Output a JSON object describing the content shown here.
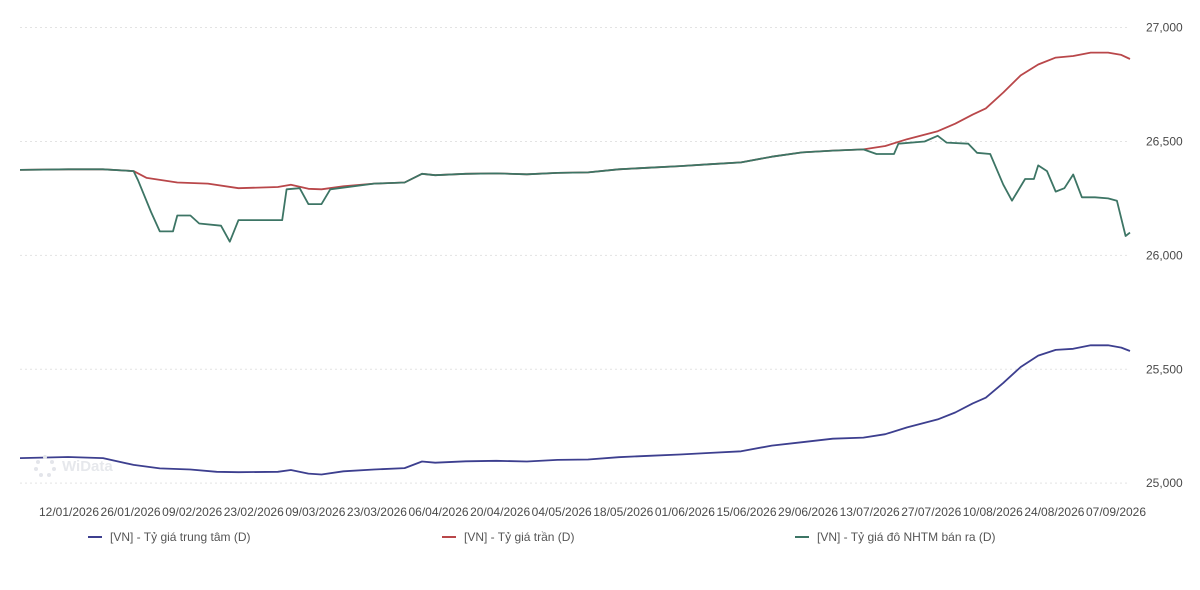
{
  "chart_data": {
    "type": "line",
    "title": "",
    "xlabel": "",
    "ylabel": "",
    "ylim": [
      24970,
      27020
    ],
    "y_ticks": [
      25000,
      25500,
      26000,
      26500,
      27000
    ],
    "y_tick_labels": [
      "25,000",
      "25,500",
      "26,000",
      "26,500",
      "27,000"
    ],
    "x_tick_labels": [
      "12/01/2026",
      "26/01/2026",
      "09/02/2026",
      "23/02/2026",
      "09/03/2026",
      "23/03/2026",
      "06/04/2026",
      "20/04/2026",
      "04/05/2026",
      "18/05/2026",
      "01/06/2026",
      "15/06/2026",
      "29/06/2026",
      "13/07/2026",
      "27/07/2026",
      "10/08/2026",
      "24/08/2026",
      "07/09/2026"
    ],
    "x_range": [
      "2026-01-01",
      "2026-09-12"
    ],
    "grid": "horizontal-dotted",
    "legend_position": "bottom",
    "series": [
      {
        "name": "[VN] - Tỷ giá trung tâm (D)",
        "color": "#3d3f8f",
        "points": [
          [
            "2026-01-01",
            25110
          ],
          [
            "2026-01-12",
            25115
          ],
          [
            "2026-01-20",
            25110
          ],
          [
            "2026-01-27",
            25080
          ],
          [
            "2026-02-02",
            25065
          ],
          [
            "2026-02-09",
            25060
          ],
          [
            "2026-02-15",
            25050
          ],
          [
            "2026-02-20",
            25048
          ],
          [
            "2026-03-01",
            25050
          ],
          [
            "2026-03-04",
            25058
          ],
          [
            "2026-03-08",
            25042
          ],
          [
            "2026-03-11",
            25038
          ],
          [
            "2026-03-16",
            25052
          ],
          [
            "2026-03-23",
            25060
          ],
          [
            "2026-03-30",
            25066
          ],
          [
            "2026-04-03",
            25095
          ],
          [
            "2026-04-06",
            25090
          ],
          [
            "2026-04-13",
            25096
          ],
          [
            "2026-04-20",
            25098
          ],
          [
            "2026-04-27",
            25095
          ],
          [
            "2026-05-04",
            25102
          ],
          [
            "2026-05-11",
            25104
          ],
          [
            "2026-05-18",
            25114
          ],
          [
            "2026-05-25",
            25120
          ],
          [
            "2026-06-01",
            25126
          ],
          [
            "2026-06-08",
            25133
          ],
          [
            "2026-06-15",
            25140
          ],
          [
            "2026-06-22",
            25165
          ],
          [
            "2026-06-29",
            25180
          ],
          [
            "2026-07-06",
            25195
          ],
          [
            "2026-07-13",
            25200
          ],
          [
            "2026-07-18",
            25215
          ],
          [
            "2026-07-23",
            25245
          ],
          [
            "2026-07-30",
            25280
          ],
          [
            "2026-08-03",
            25310
          ],
          [
            "2026-08-07",
            25350
          ],
          [
            "2026-08-10",
            25375
          ],
          [
            "2026-08-14",
            25440
          ],
          [
            "2026-08-18",
            25510
          ],
          [
            "2026-08-22",
            25560
          ],
          [
            "2026-08-26",
            25585
          ],
          [
            "2026-08-30",
            25590
          ],
          [
            "2026-09-03",
            25605
          ],
          [
            "2026-09-07",
            25605
          ],
          [
            "2026-09-10",
            25595
          ],
          [
            "2026-09-12",
            25580
          ]
        ]
      },
      {
        "name": "[VN] - Tỷ giá trần (D)",
        "color": "#b9474a",
        "points": [
          [
            "2026-01-01",
            26375
          ],
          [
            "2026-01-12",
            26378
          ],
          [
            "2026-01-20",
            26378
          ],
          [
            "2026-01-27",
            26370
          ],
          [
            "2026-01-30",
            26340
          ],
          [
            "2026-02-06",
            26320
          ],
          [
            "2026-02-13",
            26315
          ],
          [
            "2026-02-20",
            26295
          ],
          [
            "2026-03-01",
            26300
          ],
          [
            "2026-03-04",
            26310
          ],
          [
            "2026-03-08",
            26292
          ],
          [
            "2026-03-11",
            26290
          ],
          [
            "2026-03-16",
            26303
          ],
          [
            "2026-03-23",
            26315
          ],
          [
            "2026-03-30",
            26320
          ],
          [
            "2026-04-03",
            26358
          ],
          [
            "2026-04-06",
            26352
          ],
          [
            "2026-04-13",
            26358
          ],
          [
            "2026-04-20",
            26360
          ],
          [
            "2026-04-27",
            26356
          ],
          [
            "2026-05-04",
            26362
          ],
          [
            "2026-05-11",
            26364
          ],
          [
            "2026-05-18",
            26378
          ],
          [
            "2026-05-25",
            26385
          ],
          [
            "2026-06-01",
            26392
          ],
          [
            "2026-06-08",
            26400
          ],
          [
            "2026-06-15",
            26408
          ],
          [
            "2026-06-22",
            26433
          ],
          [
            "2026-06-29",
            26452
          ],
          [
            "2026-07-06",
            26460
          ],
          [
            "2026-07-13",
            26465
          ],
          [
            "2026-07-18",
            26480
          ],
          [
            "2026-07-23",
            26510
          ],
          [
            "2026-07-30",
            26545
          ],
          [
            "2026-08-03",
            26578
          ],
          [
            "2026-08-07",
            26618
          ],
          [
            "2026-08-10",
            26645
          ],
          [
            "2026-08-14",
            26715
          ],
          [
            "2026-08-18",
            26790
          ],
          [
            "2026-08-22",
            26838
          ],
          [
            "2026-08-26",
            26868
          ],
          [
            "2026-08-30",
            26875
          ],
          [
            "2026-09-03",
            26890
          ],
          [
            "2026-09-07",
            26890
          ],
          [
            "2026-09-10",
            26880
          ],
          [
            "2026-09-12",
            26862
          ]
        ]
      },
      {
        "name": "[VN] - Tỷ giá đô NHTM bán ra (D)",
        "color": "#3d7565",
        "points": [
          [
            "2026-01-01",
            26375
          ],
          [
            "2026-01-12",
            26378
          ],
          [
            "2026-01-20",
            26378
          ],
          [
            "2026-01-27",
            26370
          ],
          [
            "2026-01-28",
            26330
          ],
          [
            "2026-01-31",
            26190
          ],
          [
            "2026-02-02",
            26105
          ],
          [
            "2026-02-05",
            26105
          ],
          [
            "2026-02-06",
            26175
          ],
          [
            "2026-02-09",
            26175
          ],
          [
            "2026-02-11",
            26140
          ],
          [
            "2026-02-16",
            26130
          ],
          [
            "2026-02-18",
            26060
          ],
          [
            "2026-02-20",
            26155
          ],
          [
            "2026-03-02",
            26155
          ],
          [
            "2026-03-03",
            26290
          ],
          [
            "2026-03-06",
            26295
          ],
          [
            "2026-03-08",
            26225
          ],
          [
            "2026-03-11",
            26225
          ],
          [
            "2026-03-13",
            26290
          ],
          [
            "2026-03-23",
            26315
          ],
          [
            "2026-03-30",
            26320
          ],
          [
            "2026-04-03",
            26358
          ],
          [
            "2026-04-06",
            26352
          ],
          [
            "2026-04-13",
            26358
          ],
          [
            "2026-04-20",
            26360
          ],
          [
            "2026-04-27",
            26356
          ],
          [
            "2026-05-04",
            26362
          ],
          [
            "2026-05-11",
            26364
          ],
          [
            "2026-05-18",
            26378
          ],
          [
            "2026-05-25",
            26385
          ],
          [
            "2026-06-01",
            26392
          ],
          [
            "2026-06-08",
            26400
          ],
          [
            "2026-06-15",
            26408
          ],
          [
            "2026-06-22",
            26433
          ],
          [
            "2026-06-29",
            26452
          ],
          [
            "2026-07-06",
            26460
          ],
          [
            "2026-07-13",
            26465
          ],
          [
            "2026-07-16",
            26445
          ],
          [
            "2026-07-20",
            26445
          ],
          [
            "2026-07-21",
            26490
          ],
          [
            "2026-07-27",
            26500
          ],
          [
            "2026-07-30",
            26525
          ],
          [
            "2026-08-01",
            26495
          ],
          [
            "2026-08-06",
            26490
          ],
          [
            "2026-08-08",
            26450
          ],
          [
            "2026-08-11",
            26445
          ],
          [
            "2026-08-14",
            26310
          ],
          [
            "2026-08-16",
            26240
          ],
          [
            "2026-08-19",
            26335
          ],
          [
            "2026-08-21",
            26335
          ],
          [
            "2026-08-22",
            26395
          ],
          [
            "2026-08-24",
            26370
          ],
          [
            "2026-08-26",
            26280
          ],
          [
            "2026-08-28",
            26295
          ],
          [
            "2026-08-30",
            26355
          ],
          [
            "2026-09-01",
            26255
          ],
          [
            "2026-09-04",
            26255
          ],
          [
            "2026-09-07",
            26250
          ],
          [
            "2026-09-09",
            26240
          ],
          [
            "2026-09-11",
            26085
          ],
          [
            "2026-09-12",
            26100
          ]
        ]
      }
    ]
  },
  "watermark": {
    "text": "WiData"
  }
}
